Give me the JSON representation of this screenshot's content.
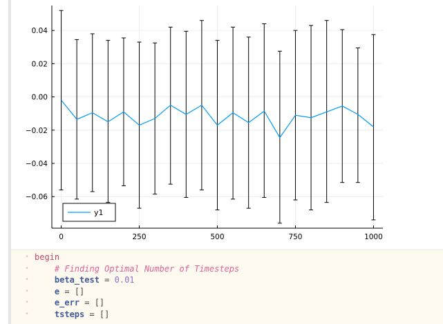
{
  "chart_data": {
    "type": "line",
    "x": [
      0,
      50,
      100,
      150,
      200,
      250,
      300,
      350,
      400,
      450,
      500,
      550,
      600,
      650,
      700,
      750,
      800,
      850,
      900,
      950,
      1000
    ],
    "series": [
      {
        "name": "y1",
        "color": "#009af9",
        "values": [
          -0.002,
          -0.0135,
          -0.0095,
          -0.015,
          -0.009,
          -0.017,
          -0.013,
          -0.005,
          -0.0105,
          -0.005,
          -0.017,
          -0.0095,
          -0.0155,
          -0.0085,
          -0.0245,
          -0.011,
          -0.0125,
          -0.009,
          -0.0055,
          -0.0105,
          -0.018
        ],
        "error_lower": [
          -0.056,
          -0.0615,
          -0.057,
          -0.0635,
          -0.0535,
          -0.067,
          -0.0585,
          -0.0525,
          -0.0605,
          -0.056,
          -0.068,
          -0.0615,
          -0.067,
          -0.0605,
          -0.076,
          -0.062,
          -0.068,
          -0.0635,
          -0.0515,
          -0.0515,
          -0.074
        ],
        "error_upper": [
          0.052,
          0.0345,
          0.038,
          0.034,
          0.0355,
          0.033,
          0.0325,
          0.042,
          0.0395,
          0.046,
          0.034,
          0.042,
          0.036,
          0.044,
          0.0275,
          0.04,
          0.043,
          0.046,
          0.0405,
          0.0295,
          0.0375
        ]
      }
    ],
    "xlim": [
      -30,
      1030
    ],
    "ylim": [
      -0.079,
      0.055
    ],
    "x_ticks": [
      0,
      250,
      500,
      750,
      1000
    ],
    "x_tick_labels": [
      "0",
      "250",
      "500",
      "750",
      "1000"
    ],
    "y_ticks": [
      0.04,
      0.02,
      0.0,
      -0.02,
      -0.04,
      -0.06
    ],
    "y_tick_labels": [
      "0.04",
      "0.02",
      "0.00",
      "−0.02",
      "−0.04",
      "−0.06"
    ],
    "grid": true,
    "legend_position": "bottom-left",
    "errorbar_color": "#000000"
  },
  "code": {
    "lines": [
      [
        {
          "t": "begin",
          "c": "kw"
        }
      ],
      [
        {
          "t": "    ",
          "c": "op"
        },
        {
          "t": "# Finding Optimal Number of Timesteps",
          "c": "cmt"
        }
      ],
      [
        {
          "t": "    ",
          "c": "op"
        },
        {
          "t": "beta_test",
          "c": "var"
        },
        {
          "t": " = ",
          "c": "op"
        },
        {
          "t": "0.01",
          "c": "num"
        }
      ],
      [
        {
          "t": "    ",
          "c": "op"
        },
        {
          "t": "e",
          "c": "var"
        },
        {
          "t": " = []",
          "c": "op"
        }
      ],
      [
        {
          "t": "    ",
          "c": "op"
        },
        {
          "t": "e_err",
          "c": "var"
        },
        {
          "t": " = []",
          "c": "op"
        }
      ],
      [
        {
          "t": "    ",
          "c": "op"
        },
        {
          "t": "tsteps",
          "c": "var"
        },
        {
          "t": " = []",
          "c": "op"
        }
      ]
    ]
  }
}
